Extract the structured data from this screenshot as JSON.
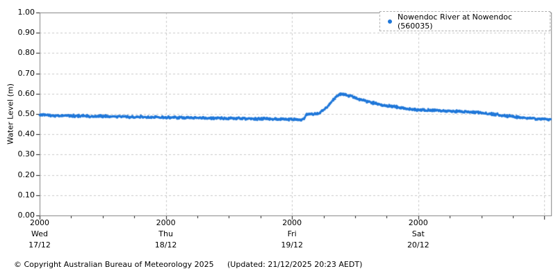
{
  "legend": {
    "label": "Nowendoc River at Nowendoc (560035)"
  },
  "footer": {
    "copyright": "© Copyright Australian Bureau of Meteorology 2025",
    "updated": "(Updated: 21/12/2025 20:23 AEDT)"
  },
  "colors": {
    "series_blue": "#1f77d9",
    "gridline": "#c9c9c9",
    "axis_border": "#808080",
    "tick": "#1a1a1a",
    "text": "#000000"
  },
  "chart_data": {
    "type": "scatter",
    "title": "",
    "xlabel": "",
    "ylabel": "Water Level (m)",
    "ylim": [
      0.0,
      1.0
    ],
    "y_tick_step": 0.1,
    "y_tick_labels": [
      "0.00",
      "0.10",
      "0.20",
      "0.30",
      "0.40",
      "0.50",
      "0.60",
      "0.70",
      "0.80",
      "0.90",
      "1.00"
    ],
    "grid": true,
    "legend_position": "top-right",
    "x_range_hours": [
      0,
      97.2
    ],
    "x_minor_tick_hours": 6,
    "x_gridlines_t": [
      24,
      48,
      72,
      96
    ],
    "x_ticks": [
      {
        "t": 0,
        "time": "2000",
        "day": "Wed",
        "date": "17/12"
      },
      {
        "t": 24,
        "time": "2000",
        "day": "Thu",
        "date": "18/12"
      },
      {
        "t": 48,
        "time": "2000",
        "day": "Fri",
        "date": "19/12"
      },
      {
        "t": 72,
        "time": "2000",
        "day": "Sat",
        "date": "20/12"
      }
    ],
    "series": [
      {
        "name": "Nowendoc River at Nowendoc (560035)",
        "color": "#1f77d9",
        "style": "dots",
        "points": [
          [
            0,
            0.496
          ],
          [
            2,
            0.493
          ],
          [
            4,
            0.492
          ],
          [
            8,
            0.49
          ],
          [
            12,
            0.489
          ],
          [
            16,
            0.487
          ],
          [
            20,
            0.485
          ],
          [
            24,
            0.483
          ],
          [
            28,
            0.482
          ],
          [
            32,
            0.481
          ],
          [
            36,
            0.479
          ],
          [
            40,
            0.477
          ],
          [
            44,
            0.475
          ],
          [
            48,
            0.473
          ],
          [
            49.6,
            0.472
          ],
          [
            50.2,
            0.474
          ],
          [
            50.6,
            0.497
          ],
          [
            51.5,
            0.499
          ],
          [
            52.5,
            0.5
          ],
          [
            53.2,
            0.505
          ],
          [
            54,
            0.518
          ],
          [
            55,
            0.545
          ],
          [
            56,
            0.575
          ],
          [
            56.8,
            0.593
          ],
          [
            57.5,
            0.6
          ],
          [
            58.5,
            0.592
          ],
          [
            59.5,
            0.585
          ],
          [
            60.8,
            0.572
          ],
          [
            62.9,
            0.558
          ],
          [
            65.2,
            0.545
          ],
          [
            67.4,
            0.536
          ],
          [
            69.5,
            0.528
          ],
          [
            72,
            0.52
          ],
          [
            75,
            0.517
          ],
          [
            78.4,
            0.514
          ],
          [
            82.3,
            0.51
          ],
          [
            85,
            0.502
          ],
          [
            87,
            0.497
          ],
          [
            90.3,
            0.486
          ],
          [
            93,
            0.48
          ],
          [
            95.5,
            0.476
          ],
          [
            97.2,
            0.473
          ]
        ]
      }
    ]
  }
}
